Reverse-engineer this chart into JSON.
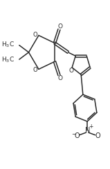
{
  "bg_color": "#ffffff",
  "line_color": "#2a2a2a",
  "figsize": [
    1.59,
    2.45
  ],
  "dpi": 100,
  "lw": 1.1,
  "xlim": [
    0,
    10
  ],
  "ylim": [
    0,
    15.4
  ]
}
